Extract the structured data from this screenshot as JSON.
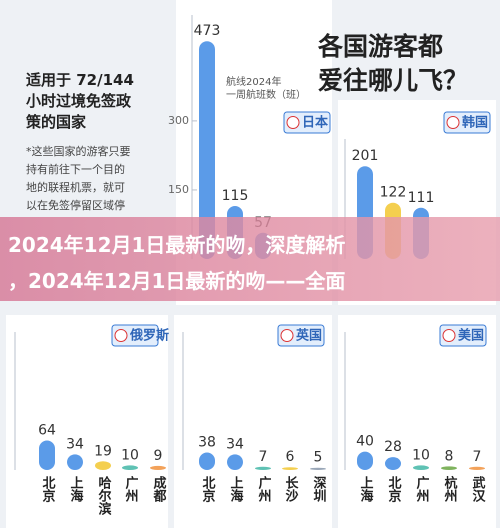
{
  "header": {
    "title_lines": [
      "各国游客都",
      "爱往哪儿飞？"
    ]
  },
  "info": {
    "title_lines": [
      "适用于 72/144",
      "小时过境免签政",
      "策的国家"
    ],
    "note_lines": [
      "*这些国家的游客只要",
      "持有前往下一个目的",
      "地的联程机票，就可",
      "以在免签停留区域停"
    ]
  },
  "annotation": {
    "lines": [
      "航线2024年",
      "一周航班数（班）"
    ]
  },
  "banner": {
    "lines": [
      "2024年12月1日最新的吻，深度解析",
      "，2024年12月1日最新的吻——全面"
    ]
  },
  "chart_data": [
    {
      "type": "bar",
      "title": "日本",
      "categories": [
        null,
        null,
        null
      ],
      "values": [
        473,
        115,
        57
      ],
      "colors": [
        "#5b9be8",
        "#5b9be8",
        "#5b9be8"
      ],
      "ylim": [
        0,
        530
      ],
      "yticks": [
        150,
        300
      ]
    },
    {
      "type": "bar",
      "title": "韩国",
      "categories": [
        null,
        null,
        null
      ],
      "values": [
        201,
        122,
        111
      ],
      "colors": [
        "#5b9be8",
        "#f4cf4f",
        "#5b9be8"
      ],
      "ylim": [
        0,
        260
      ]
    },
    {
      "type": "bar",
      "title": "俄罗斯",
      "categories": [
        "北京",
        "上海",
        "哈尔滨",
        "广州",
        "成都"
      ],
      "values": [
        64,
        34,
        19,
        10,
        9
      ],
      "colors": [
        "#5b9be8",
        "#5b9be8",
        "#f4cf4f",
        "#5fc2b4",
        "#f3a25a"
      ],
      "ylim": [
        0,
        300
      ]
    },
    {
      "type": "bar",
      "title": "英国",
      "categories": [
        "北京",
        "上海",
        "广州",
        "长沙",
        "深圳"
      ],
      "values": [
        38,
        34,
        7,
        6,
        5
      ],
      "colors": [
        "#5b9be8",
        "#5b9be8",
        "#5fc2b4",
        "#f4cf4f",
        "#9aa7b8"
      ],
      "ylim": [
        0,
        300
      ]
    },
    {
      "type": "bar",
      "title": "美国",
      "categories": [
        "上海",
        "北京",
        "广州",
        "杭州",
        "武汉"
      ],
      "values": [
        40,
        28,
        10,
        8,
        7
      ],
      "colors": [
        "#5b9be8",
        "#5b9be8",
        "#5fc2b4",
        "#7fb35e",
        "#f3a25a"
      ],
      "ylim": [
        0,
        300
      ]
    }
  ]
}
